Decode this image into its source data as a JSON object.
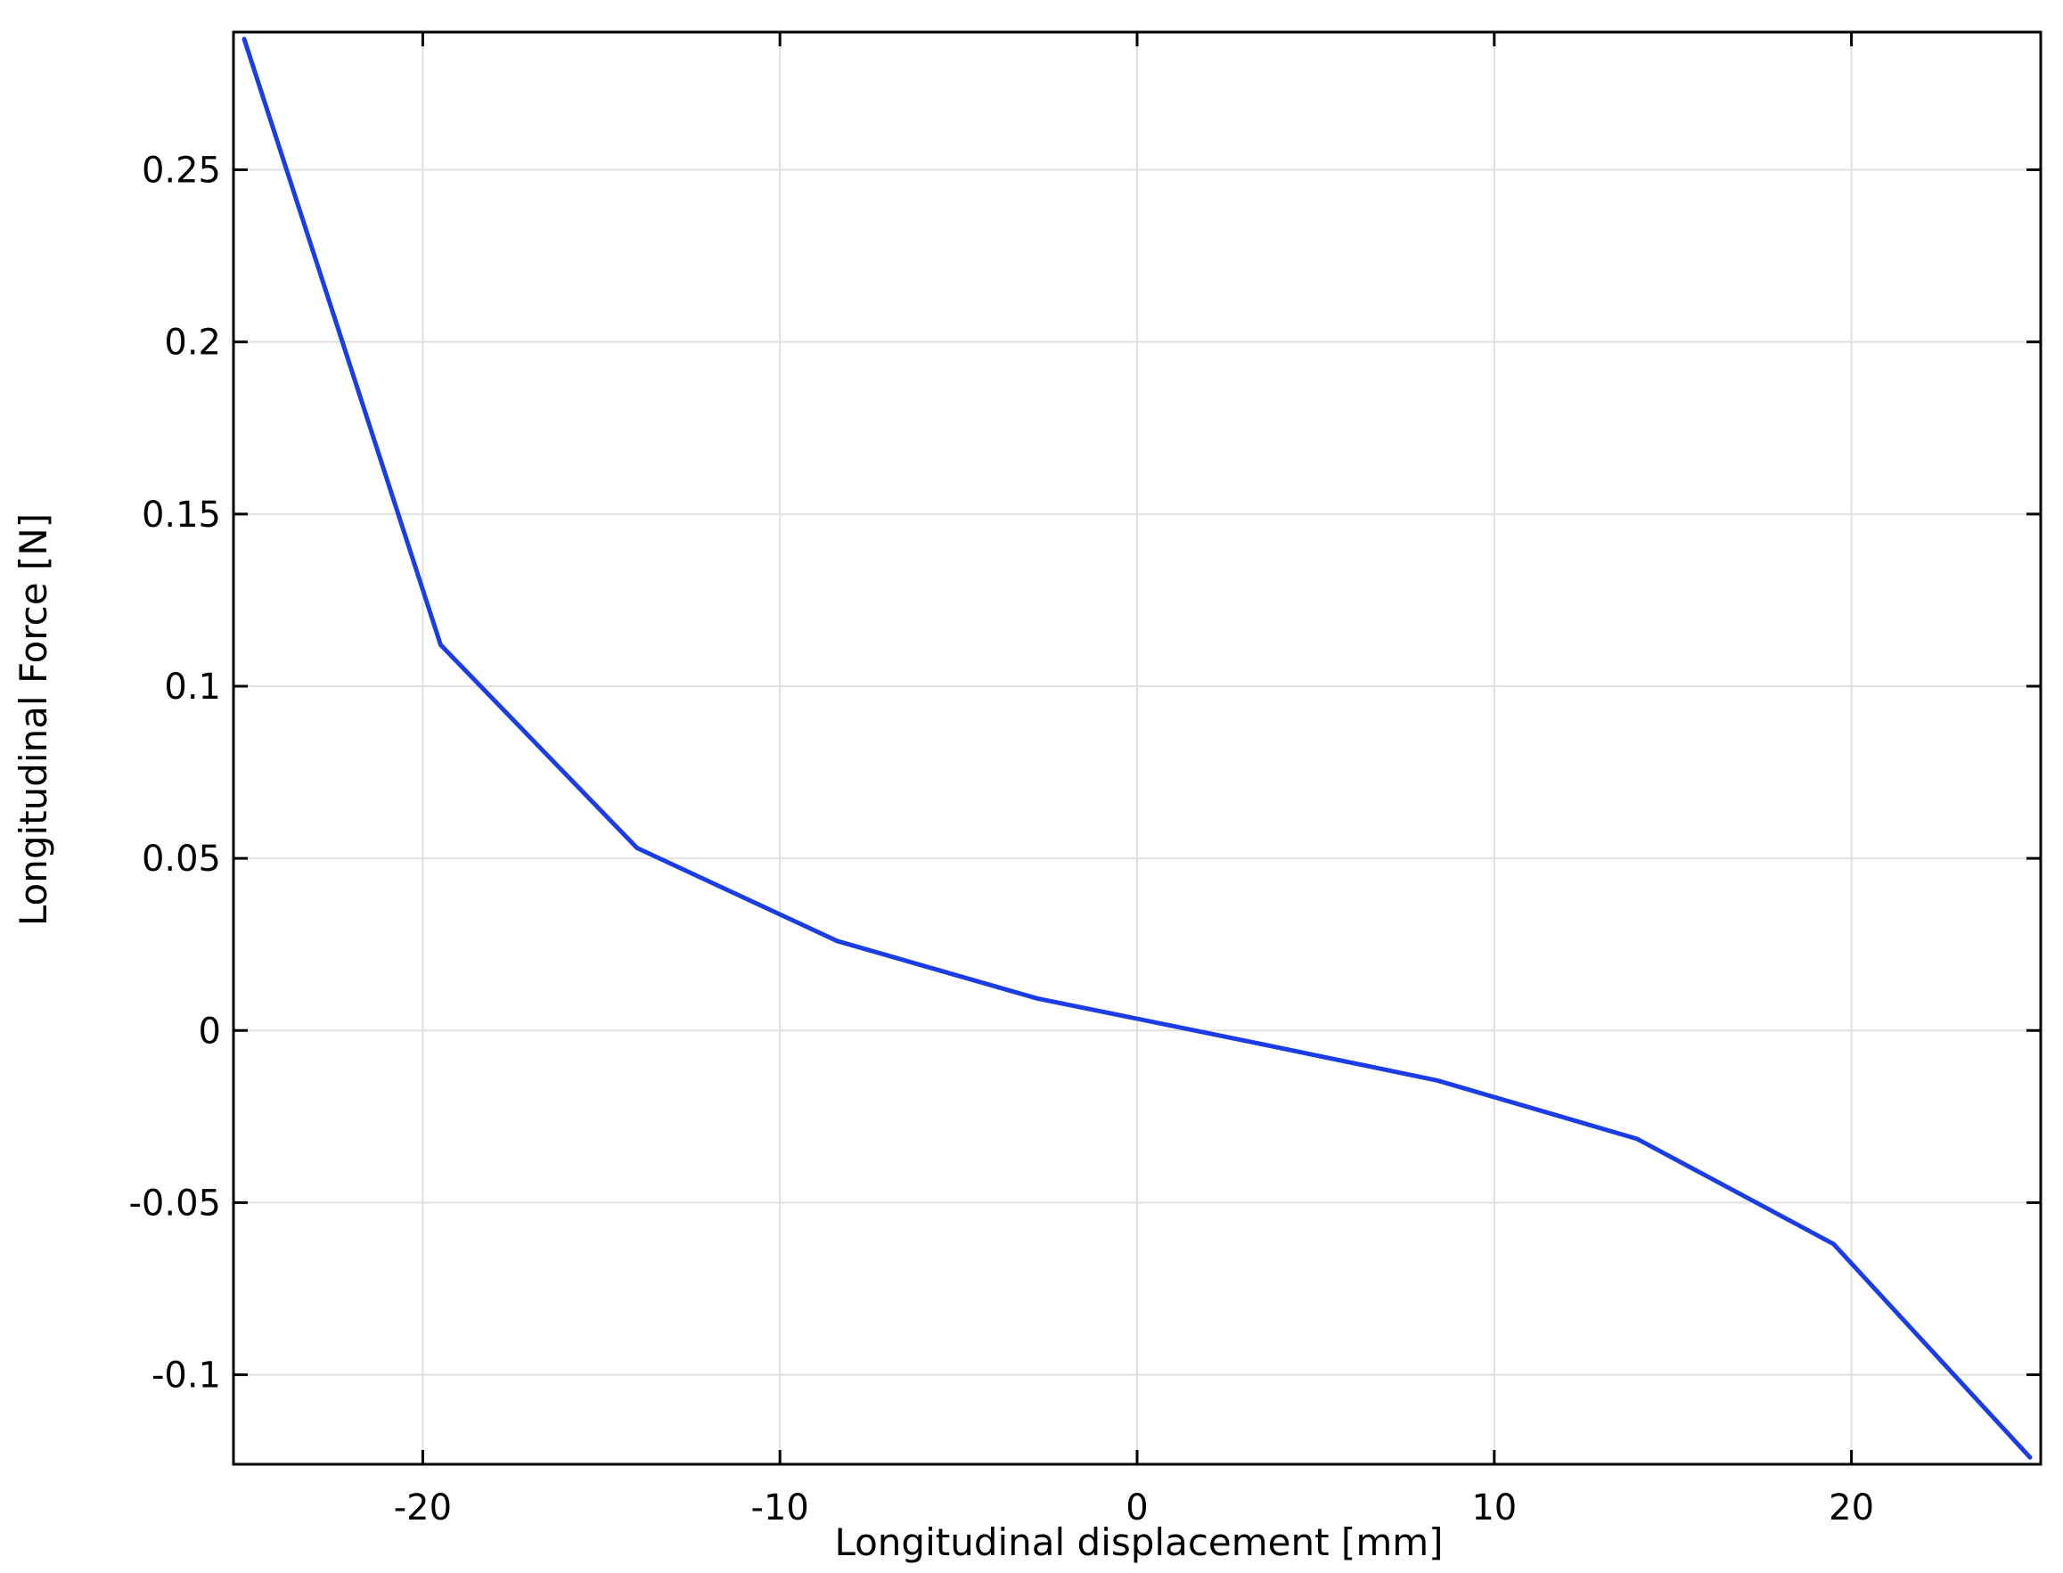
{
  "chart_data": {
    "type": "line",
    "xlabel": "Longitudinal displacement [mm]",
    "ylabel": "Longitudinal Force  [N]",
    "xlim": [
      -25.3,
      25.3
    ],
    "ylim": [
      -0.126,
      0.29
    ],
    "xticks": [
      -20,
      -10,
      0,
      10,
      20
    ],
    "xtick_labels": [
      "-20",
      "-10",
      "0",
      "10",
      "20"
    ],
    "yticks": [
      -0.1,
      -0.05,
      0,
      0.05,
      0.1,
      0.15,
      0.2,
      0.25
    ],
    "ytick_labels": [
      "-0.1",
      "-0.05",
      "0",
      "0.05",
      "0.1",
      "0.15",
      "0.2",
      "0.25"
    ],
    "grid": true,
    "colors": {
      "line": "#1a3de6",
      "grid": "#e0e0e0",
      "axis": "#000000"
    },
    "series": [
      {
        "x": [
          -25,
          -19.5,
          -14,
          -8.4,
          -2.8,
          2.8,
          8.4,
          14,
          19.5,
          25
        ],
        "y": [
          0.288,
          0.112,
          0.053,
          0.026,
          0.0093,
          -0.0025,
          -0.0145,
          -0.0315,
          -0.062,
          -0.124
        ]
      }
    ]
  }
}
